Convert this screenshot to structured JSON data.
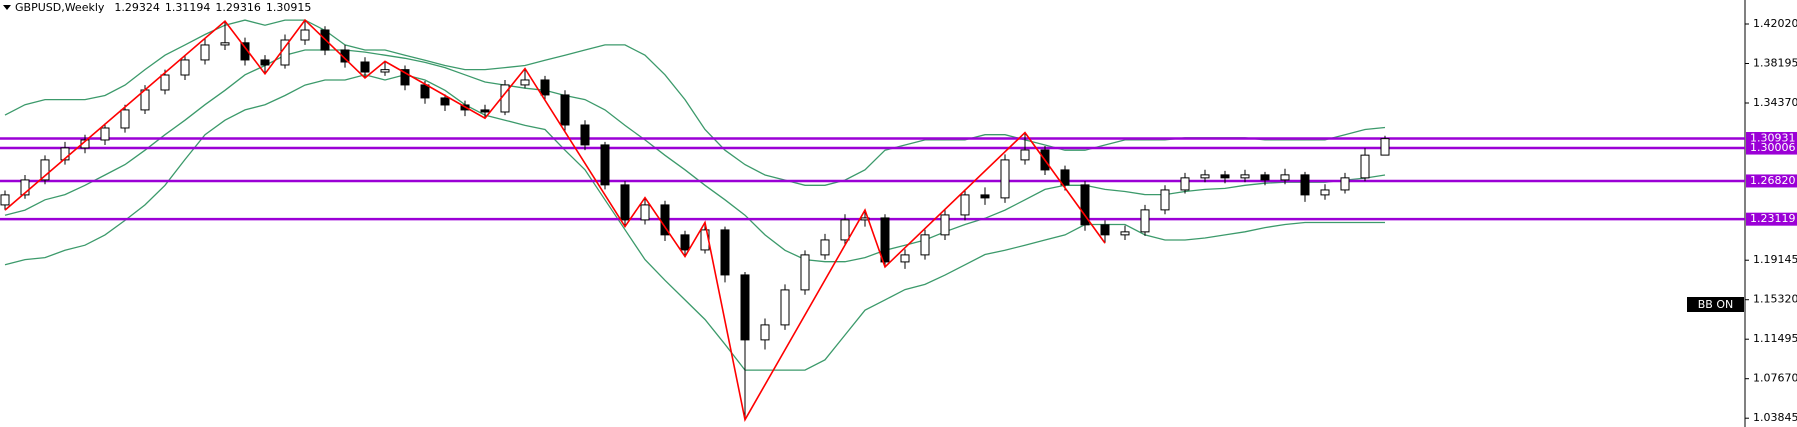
{
  "chart_data": {
    "type": "candlestick",
    "title": "GBPUSD,Weekly",
    "open": [
      1.245,
      1.2547,
      1.2692,
      1.2886,
      1.3002,
      1.3079,
      1.3195,
      1.337,
      1.3563,
      1.3708,
      1.3854,
      1.3999,
      1.402,
      1.3854,
      1.3805,
      1.4047,
      1.4144,
      1.395,
      1.3834,
      1.3737,
      1.376,
      1.3612,
      1.3486,
      1.3418,
      1.337,
      1.335,
      1.3612,
      1.366,
      1.3515,
      1.3224,
      1.3031,
      1.2644,
      1.2305,
      1.245,
      1.216,
      1.2014,
      1.2208,
      1.1772,
      1.1143,
      1.1288,
      1.1627,
      1.1966,
      1.2111,
      1.2305,
      1.2324,
      1.1898,
      1.1966,
      1.216,
      1.2353,
      1.2547,
      1.2518,
      1.2886,
      1.2982,
      1.2789,
      1.2644,
      1.2257,
      1.216,
      1.2189,
      1.2402,
      1.2595,
      1.2712,
      1.2741,
      1.2712,
      1.2741,
      1.2692,
      1.2741,
      1.2547,
      1.2595,
      1.2712,
      1.29324
    ],
    "high": [
      1.259,
      1.274,
      1.293,
      1.306,
      1.313,
      1.324,
      1.342,
      1.361,
      1.376,
      1.39,
      1.406,
      1.423,
      1.407,
      1.39,
      1.41,
      1.424,
      1.418,
      1.4,
      1.388,
      1.384,
      1.38,
      1.365,
      1.352,
      1.346,
      1.342,
      1.366,
      1.377,
      1.37,
      1.356,
      1.327,
      1.306,
      1.268,
      1.252,
      1.249,
      1.22,
      1.228,
      1.224,
      1.18,
      1.135,
      1.168,
      1.201,
      1.217,
      1.236,
      1.24,
      1.236,
      1.202,
      1.221,
      1.24,
      1.26,
      1.262,
      1.294,
      1.315,
      1.302,
      1.283,
      1.268,
      1.23,
      1.225,
      1.245,
      1.264,
      1.276,
      1.279,
      1.278,
      1.279,
      1.277,
      1.28,
      1.277,
      1.265,
      1.276,
      1.3,
      1.31194
    ],
    "low": [
      1.24,
      1.251,
      1.265,
      1.284,
      1.295,
      1.303,
      1.315,
      1.333,
      1.352,
      1.366,
      1.381,
      1.395,
      1.38,
      1.372,
      1.377,
      1.4,
      1.39,
      1.378,
      1.368,
      1.37,
      1.356,
      1.343,
      1.336,
      1.331,
      1.329,
      1.332,
      1.358,
      1.346,
      1.317,
      1.298,
      1.26,
      1.224,
      1.226,
      1.21,
      1.195,
      1.198,
      1.17,
      1.037,
      1.105,
      1.124,
      1.158,
      1.192,
      1.206,
      1.224,
      1.185,
      1.183,
      1.192,
      1.211,
      1.23,
      1.245,
      1.247,
      1.284,
      1.274,
      1.259,
      1.22,
      1.208,
      1.211,
      1.215,
      1.236,
      1.256,
      1.267,
      1.266,
      1.267,
      1.264,
      1.265,
      1.248,
      1.25,
      1.256,
      1.268,
      1.29316
    ],
    "close": [
      1.2547,
      1.2692,
      1.2886,
      1.3002,
      1.3079,
      1.3195,
      1.337,
      1.3563,
      1.3708,
      1.3854,
      1.3999,
      1.402,
      1.3854,
      1.3805,
      1.4047,
      1.4144,
      1.395,
      1.3834,
      1.3737,
      1.376,
      1.3612,
      1.3486,
      1.3418,
      1.337,
      1.335,
      1.3612,
      1.366,
      1.3515,
      1.3224,
      1.3031,
      1.2644,
      1.2305,
      1.245,
      1.216,
      1.2014,
      1.2208,
      1.1772,
      1.1143,
      1.1288,
      1.1627,
      1.1966,
      1.2111,
      1.2305,
      1.2324,
      1.1898,
      1.1966,
      1.216,
      1.2353,
      1.2547,
      1.2518,
      1.2886,
      1.2982,
      1.2789,
      1.2644,
      1.2257,
      1.216,
      1.2189,
      1.2402,
      1.2595,
      1.2712,
      1.2741,
      1.2712,
      1.2741,
      1.2692,
      1.2741,
      1.2547,
      1.2595,
      1.2712,
      1.2932,
      1.30915
    ],
    "up_color": "#ffffff",
    "down_color": "#000000",
    "bands": {
      "color": "#3c9a6b",
      "upper": [
        1.332,
        1.342,
        1.347,
        1.347,
        1.347,
        1.351,
        1.361,
        1.376,
        1.39,
        1.4,
        1.41,
        1.419,
        1.424,
        1.419,
        1.424,
        1.424,
        1.414,
        1.4,
        1.395,
        1.395,
        1.39,
        1.385,
        1.38,
        1.376,
        1.376,
        1.378,
        1.38,
        1.385,
        1.39,
        1.395,
        1.4,
        1.4,
        1.39,
        1.371,
        1.347,
        1.318,
        1.298,
        1.284,
        1.274,
        1.269,
        1.264,
        1.264,
        1.269,
        1.279,
        1.298,
        1.303,
        1.308,
        1.308,
        1.308,
        1.313,
        1.313,
        1.308,
        1.303,
        1.298,
        1.298,
        1.303,
        1.308,
        1.308,
        1.308,
        1.31,
        1.31,
        1.31,
        1.31,
        1.308,
        1.308,
        1.308,
        1.308,
        1.313,
        1.318,
        1.32
      ],
      "middle": [
        1.235,
        1.24,
        1.25,
        1.255,
        1.264,
        1.274,
        1.284,
        1.298,
        1.313,
        1.327,
        1.342,
        1.356,
        1.371,
        1.38,
        1.39,
        1.395,
        1.395,
        1.395,
        1.393,
        1.39,
        1.387,
        1.383,
        1.378,
        1.371,
        1.364,
        1.361,
        1.358,
        1.356,
        1.351,
        1.347,
        1.337,
        1.322,
        1.308,
        1.293,
        1.279,
        1.264,
        1.25,
        1.235,
        1.216,
        1.201,
        1.192,
        1.19,
        1.19,
        1.194,
        1.201,
        1.206,
        1.211,
        1.219,
        1.226,
        1.232,
        1.24,
        1.25,
        1.26,
        1.264,
        1.264,
        1.26,
        1.258,
        1.255,
        1.255,
        1.258,
        1.26,
        1.261,
        1.264,
        1.266,
        1.267,
        1.267,
        1.267,
        1.269,
        1.271,
        1.274
      ],
      "lower": [
        1.187,
        1.192,
        1.194,
        1.201,
        1.206,
        1.216,
        1.23,
        1.245,
        1.264,
        1.289,
        1.313,
        1.327,
        1.337,
        1.342,
        1.351,
        1.361,
        1.366,
        1.366,
        1.371,
        1.366,
        1.371,
        1.366,
        1.356,
        1.342,
        1.332,
        1.327,
        1.322,
        1.318,
        1.298,
        1.279,
        1.25,
        1.221,
        1.192,
        1.172,
        1.153,
        1.134,
        1.11,
        1.085,
        1.085,
        1.085,
        1.085,
        1.095,
        1.119,
        1.143,
        1.153,
        1.163,
        1.168,
        1.177,
        1.187,
        1.197,
        1.201,
        1.206,
        1.211,
        1.216,
        1.226,
        1.226,
        1.226,
        1.216,
        1.211,
        1.211,
        1.213,
        1.216,
        1.219,
        1.223,
        1.226,
        1.228,
        1.228,
        1.228,
        1.228,
        1.228
      ]
    },
    "zigzag": {
      "color": "#ff0000",
      "x": [
        0,
        11,
        13,
        15,
        18,
        19,
        24,
        26,
        31,
        32,
        34,
        35,
        37,
        43,
        44,
        51,
        55
      ],
      "values": [
        1.24,
        1.423,
        1.372,
        1.424,
        1.368,
        1.384,
        1.329,
        1.377,
        1.224,
        1.252,
        1.195,
        1.228,
        1.037,
        1.24,
        1.185,
        1.315,
        1.208
      ]
    },
    "levels": {
      "color": "#9b00d6",
      "values": [
        {
          "value": 1.30931,
          "label": "1.30931"
        },
        {
          "value": 1.30006,
          "label": "1.30006"
        },
        {
          "value": 1.2682,
          "label": "1.26820"
        },
        {
          "value": 1.23119,
          "label": "1.23119"
        }
      ]
    },
    "indicator_label": "BB ON",
    "ylim": [
      1.02993,
      1.44344
    ],
    "yticks": [
      {
        "value": 1.4202,
        "label": "1.42020"
      },
      {
        "value": 1.38195,
        "label": "1.38195"
      },
      {
        "value": 1.3437,
        "label": "1.34370"
      },
      {
        "value": 1.19145,
        "label": "1.19145"
      },
      {
        "value": 1.1532,
        "label": "1.15320"
      },
      {
        "value": 1.11495,
        "label": "1.11495"
      },
      {
        "value": 1.0767,
        "label": "1.07670"
      },
      {
        "value": 1.03845,
        "label": "1.03845"
      }
    ]
  }
}
